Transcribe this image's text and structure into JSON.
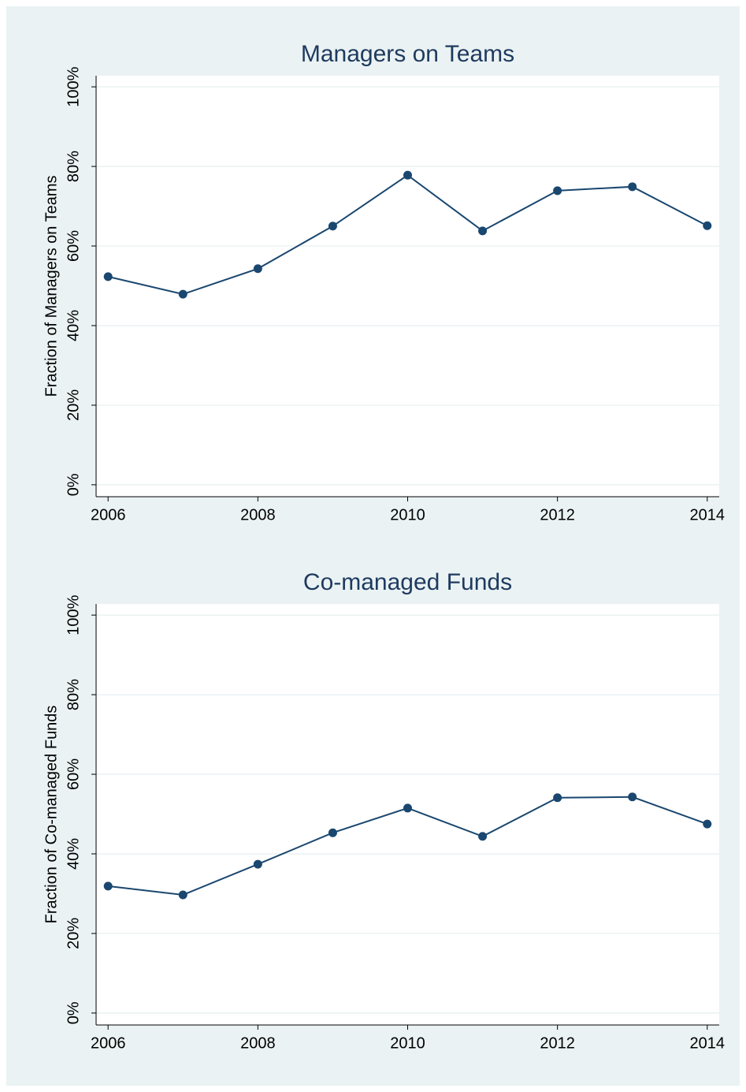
{
  "chart_data": [
    {
      "type": "line",
      "title": "Managers on Teams",
      "ylabel": "Fraction of  Managers on Teams",
      "x": [
        2006,
        2007,
        2008,
        2009,
        2010,
        2011,
        2012,
        2013,
        2014
      ],
      "values": [
        52.3,
        47.9,
        54.3,
        65.0,
        77.8,
        63.8,
        73.9,
        74.9,
        65.1
      ],
      "color": "#1a476f",
      "xlim": [
        2005.84,
        2014.16
      ],
      "xticks": [
        2006,
        2008,
        2010,
        2012,
        2014
      ],
      "ylim": [
        -3,
        102.8
      ],
      "yticks": [
        {
          "value": 0,
          "label": "0%"
        },
        {
          "value": 20,
          "label": "20%"
        },
        {
          "value": 40,
          "label": "40%"
        },
        {
          "value": 60,
          "label": "60%"
        },
        {
          "value": 80,
          "label": "80%"
        },
        {
          "value": 100,
          "label": "100%"
        }
      ],
      "grid": true
    },
    {
      "type": "line",
      "title": "Co-managed Funds",
      "ylabel": "Fraction of  Co-managed Funds",
      "x": [
        2006,
        2007,
        2008,
        2009,
        2010,
        2011,
        2012,
        2013,
        2014
      ],
      "values": [
        31.9,
        29.7,
        37.4,
        45.3,
        51.5,
        44.4,
        54.1,
        54.3,
        47.5
      ],
      "color": "#1a476f",
      "xlim": [
        2005.84,
        2014.16
      ],
      "xticks": [
        2006,
        2008,
        2010,
        2012,
        2014
      ],
      "ylim": [
        -3,
        102.8
      ],
      "yticks": [
        {
          "value": 0,
          "label": "0%"
        },
        {
          "value": 20,
          "label": "20%"
        },
        {
          "value": 40,
          "label": "40%"
        },
        {
          "value": 60,
          "label": "60%"
        },
        {
          "value": 80,
          "label": "80%"
        },
        {
          "value": 100,
          "label": "100%"
        }
      ],
      "grid": true
    }
  ]
}
